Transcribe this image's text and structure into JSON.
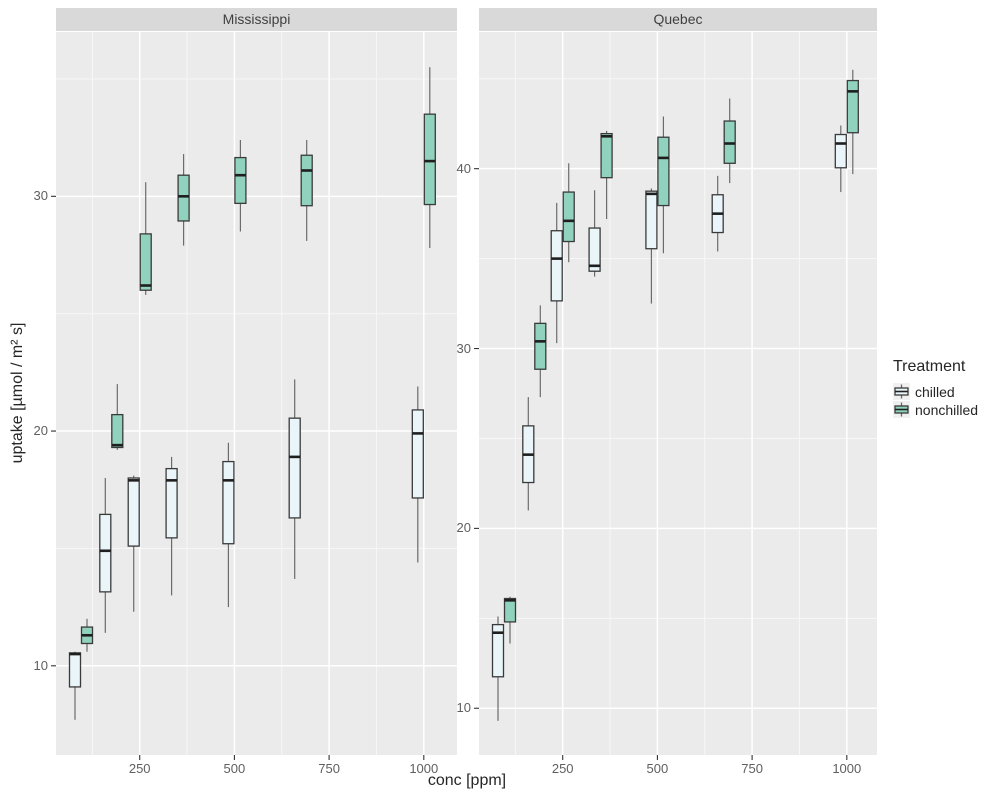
{
  "facets": [
    {
      "label": "Mississippi"
    },
    {
      "label": "Quebec"
    }
  ],
  "axes": {
    "x_title": "conc [ppm]",
    "y_title": "uptake [µmol / m² s]",
    "x_tick_labels": [
      "250",
      "500",
      "750",
      "1000"
    ],
    "y_tick_labels": [
      [
        "10",
        "20",
        "30"
      ],
      [
        "10",
        "20",
        "30",
        "40"
      ]
    ]
  },
  "legend": {
    "title": "Treatment",
    "items": [
      {
        "label": "chilled",
        "color": "#E9F5F9"
      },
      {
        "label": "nonchilled",
        "color": "#90D2BD"
      }
    ]
  },
  "colors": {
    "panel_bg": "#EBEBEB",
    "strip_bg": "#D9D9D9",
    "grid_major": "#FFFFFF",
    "grid_minor": "#F7F7F7",
    "tick_mark": "#333333",
    "box_border": "#3A3A3A",
    "median": "#1F1F1F",
    "whisker": "#6B6B6B",
    "chilled_fill": "#E9F5F9",
    "nonchilled_fill": "#90D2BD"
  },
  "chart_data": {
    "type": "boxplot",
    "title": "",
    "xlabel": "conc [ppm]",
    "ylabel": "uptake [µmol / m² s]",
    "grid": true,
    "legend_position": "right",
    "x_values": [
      95,
      175,
      250,
      350,
      500,
      675,
      1000
    ],
    "x_major_gridlines": [
      250,
      500,
      750,
      1000
    ],
    "x_minor_gridlines": [
      125,
      375,
      625,
      875
    ],
    "xlim": [
      29,
      1085
    ],
    "facets": [
      {
        "label": "Mississippi",
        "ylim": [
          6.2,
          37.0
        ],
        "y_major_gridlines": [
          10,
          20,
          30
        ],
        "y_minor_gridlines": [
          15,
          25,
          35
        ],
        "series": [
          {
            "name": "chilled",
            "groups": [
              [
                7.7,
                10.5,
                10.6
              ],
              [
                11.4,
                14.9,
                18.0
              ],
              [
                12.3,
                17.9,
                18.1
              ],
              [
                13.0,
                17.9,
                18.9
              ],
              [
                12.5,
                17.9,
                19.5
              ],
              [
                13.7,
                18.9,
                22.2
              ],
              [
                14.4,
                19.9,
                21.9
              ]
            ]
          },
          {
            "name": "nonchilled",
            "groups": [
              [
                10.6,
                11.3,
                12.0
              ],
              [
                19.2,
                19.4,
                22.0
              ],
              [
                25.8,
                26.2,
                30.6
              ],
              [
                27.9,
                30.0,
                31.8
              ],
              [
                28.5,
                30.9,
                32.4
              ],
              [
                28.1,
                31.1,
                32.4
              ],
              [
                27.8,
                31.5,
                35.5
              ]
            ]
          }
        ]
      },
      {
        "label": "Quebec",
        "ylim": [
          7.4,
          47.6
        ],
        "y_major_gridlines": [
          10,
          20,
          30,
          40
        ],
        "y_minor_gridlines": [
          15,
          25,
          35,
          45
        ],
        "series": [
          {
            "name": "chilled",
            "groups": [
              [
                9.3,
                14.2,
                15.1
              ],
              [
                21.0,
                24.1,
                27.3
              ],
              [
                30.3,
                35.0,
                38.1
              ],
              [
                34.0,
                34.6,
                38.8
              ],
              [
                32.5,
                38.6,
                38.9
              ],
              [
                35.4,
                37.5,
                39.6
              ],
              [
                38.7,
                41.4,
                42.4
              ]
            ]
          },
          {
            "name": "nonchilled",
            "groups": [
              [
                13.6,
                16.0,
                16.2
              ],
              [
                27.3,
                30.4,
                32.4
              ],
              [
                34.8,
                37.1,
                40.3
              ],
              [
                37.2,
                41.8,
                42.1
              ],
              [
                35.3,
                40.6,
                42.9
              ],
              [
                39.2,
                41.4,
                43.9
              ],
              [
                39.7,
                44.3,
                45.5
              ]
            ]
          }
        ]
      }
    ]
  }
}
